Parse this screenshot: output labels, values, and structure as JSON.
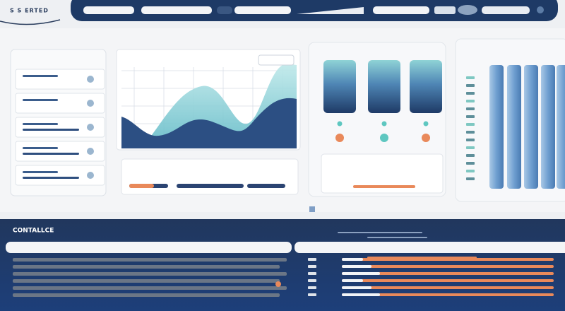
{
  "header": {
    "brand": "S S ERTED"
  },
  "bottom_panel": {
    "title": "CONTALLCE"
  }
}
